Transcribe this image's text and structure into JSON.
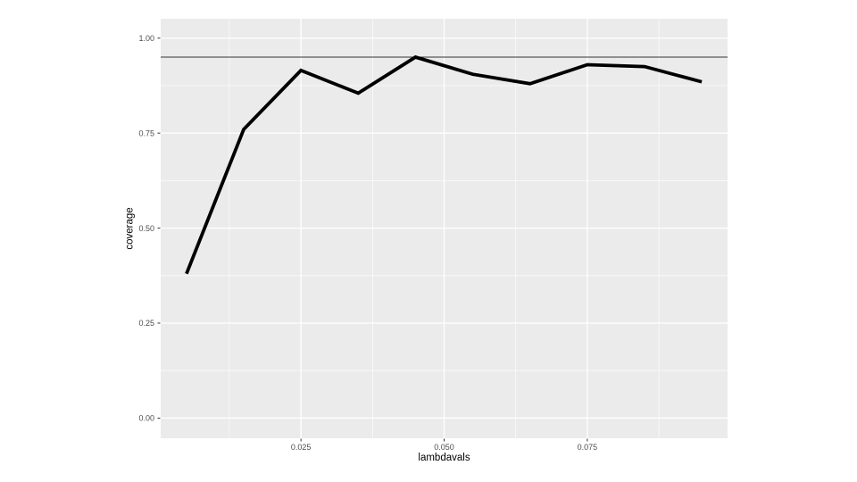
{
  "chart_data": {
    "type": "line",
    "title": "",
    "xlabel": "lambdavals",
    "ylabel": "coverage",
    "x": [
      0.005,
      0.015,
      0.025,
      0.035,
      0.045,
      0.055,
      0.065,
      0.075,
      0.085,
      0.095
    ],
    "y": [
      0.38,
      0.76,
      0.915,
      0.855,
      0.95,
      0.905,
      0.88,
      0.93,
      0.925,
      0.885
    ],
    "reference_line_y": 0.95,
    "xlim": [
      0.0005,
      0.0995
    ],
    "ylim": [
      -0.053,
      1.051
    ],
    "x_major_ticks": [
      0.025,
      0.05,
      0.075
    ],
    "x_tick_labels": [
      "0.025",
      "0.050",
      "0.075"
    ],
    "x_minor_ticks": [
      0.0125,
      0.0375,
      0.0625,
      0.0875
    ],
    "y_major_ticks": [
      0.0,
      0.25,
      0.5,
      0.75,
      1.0
    ],
    "y_tick_labels": [
      "0.00",
      "0.25",
      "0.50",
      "0.75",
      "1.00"
    ],
    "y_minor_ticks": [
      0.125,
      0.375,
      0.625,
      0.875
    ],
    "grid": true,
    "legend_position": "none",
    "colors": {
      "panel_background": "#ebebeb",
      "grid": "#ffffff",
      "data_line": "#000000",
      "reference_line": "#333333",
      "tick_mark": "#333333",
      "tick_label": "#4d4d4d",
      "axis_title": "#000000"
    }
  }
}
